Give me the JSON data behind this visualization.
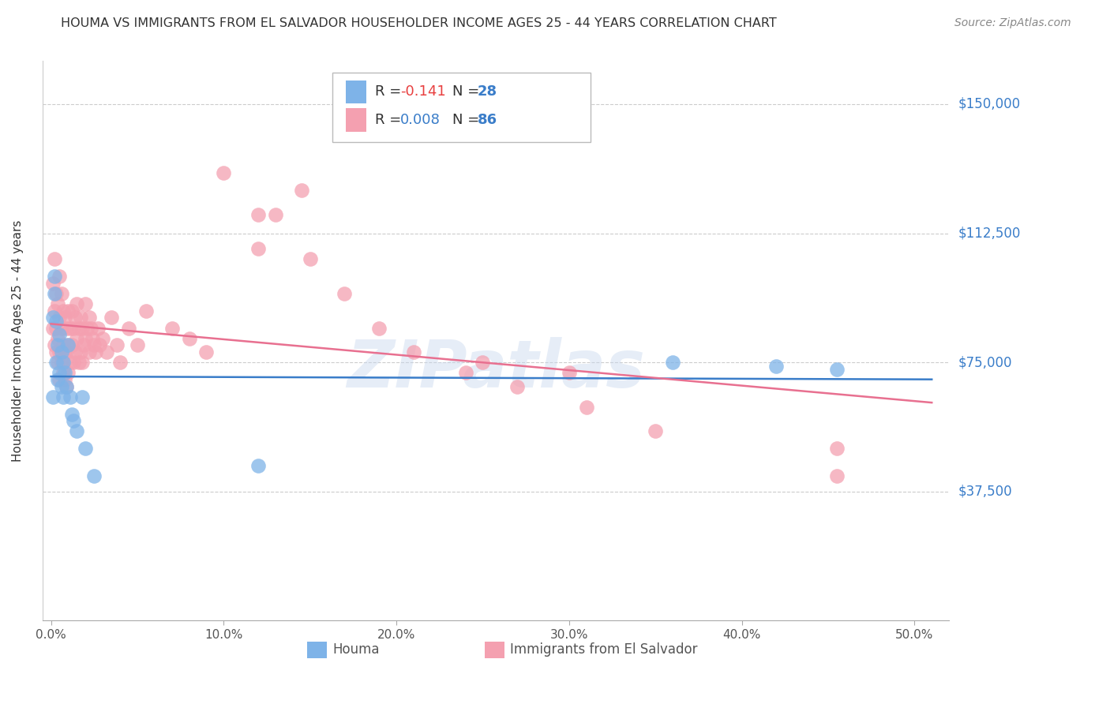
{
  "title": "HOUMA VS IMMIGRANTS FROM EL SALVADOR HOUSEHOLDER INCOME AGES 25 - 44 YEARS CORRELATION CHART",
  "source": "Source: ZipAtlas.com",
  "ylabel": "Householder Income Ages 25 - 44 years",
  "xlabel_ticks": [
    "0.0%",
    "10.0%",
    "20.0%",
    "30.0%",
    "40.0%",
    "50.0%"
  ],
  "xlabel_vals": [
    0.0,
    0.1,
    0.2,
    0.3,
    0.4,
    0.5
  ],
  "ytick_labels": [
    "$37,500",
    "$75,000",
    "$112,500",
    "$150,000"
  ],
  "ytick_vals": [
    37500,
    75000,
    112500,
    150000
  ],
  "ylim": [
    0,
    162500
  ],
  "xlim": [
    -0.005,
    0.52
  ],
  "houma_color": "#7EB3E8",
  "salvador_color": "#F4A0B0",
  "houma_line_color": "#3A7DC9",
  "salvador_line_color": "#E87090",
  "watermark": "ZIPatlas",
  "legend_R_houma_prefix": "R = ",
  "legend_R_houma_val": "-0.141",
  "legend_N_houma_prefix": "N = ",
  "legend_N_houma_val": "28",
  "legend_R_salvador_prefix": "R = ",
  "legend_R_salvador_val": "0.008",
  "legend_N_salvador_prefix": "N = ",
  "legend_N_salvador_val": "86",
  "houma_x": [
    0.001,
    0.001,
    0.002,
    0.002,
    0.003,
    0.003,
    0.004,
    0.004,
    0.005,
    0.005,
    0.006,
    0.006,
    0.007,
    0.007,
    0.008,
    0.009,
    0.01,
    0.011,
    0.012,
    0.013,
    0.015,
    0.018,
    0.02,
    0.025,
    0.12,
    0.36,
    0.42,
    0.455
  ],
  "houma_y": [
    88000,
    65000,
    95000,
    100000,
    87000,
    75000,
    80000,
    70000,
    83000,
    72000,
    78000,
    68000,
    75000,
    65000,
    72000,
    68000,
    80000,
    65000,
    60000,
    58000,
    55000,
    65000,
    50000,
    42000,
    45000,
    75000,
    74000,
    73000
  ],
  "salvador_x": [
    0.001,
    0.001,
    0.002,
    0.002,
    0.002,
    0.003,
    0.003,
    0.003,
    0.004,
    0.004,
    0.004,
    0.005,
    0.005,
    0.005,
    0.005,
    0.006,
    0.006,
    0.006,
    0.007,
    0.007,
    0.007,
    0.008,
    0.008,
    0.008,
    0.009,
    0.009,
    0.009,
    0.01,
    0.01,
    0.01,
    0.011,
    0.011,
    0.012,
    0.012,
    0.013,
    0.013,
    0.014,
    0.014,
    0.015,
    0.015,
    0.016,
    0.016,
    0.017,
    0.017,
    0.018,
    0.018,
    0.019,
    0.02,
    0.02,
    0.021,
    0.022,
    0.022,
    0.023,
    0.024,
    0.025,
    0.026,
    0.027,
    0.028,
    0.03,
    0.032,
    0.035,
    0.038,
    0.04,
    0.045,
    0.05,
    0.055,
    0.07,
    0.08,
    0.09,
    0.1,
    0.12,
    0.13,
    0.15,
    0.17,
    0.19,
    0.21,
    0.24,
    0.27,
    0.31,
    0.35,
    0.12,
    0.145,
    0.25,
    0.3,
    0.455,
    0.455
  ],
  "salvador_y": [
    98000,
    85000,
    105000,
    90000,
    80000,
    95000,
    85000,
    78000,
    92000,
    82000,
    75000,
    88000,
    100000,
    78000,
    70000,
    95000,
    85000,
    75000,
    90000,
    80000,
    72000,
    88000,
    78000,
    70000,
    85000,
    78000,
    68000,
    90000,
    80000,
    72000,
    85000,
    75000,
    90000,
    80000,
    85000,
    75000,
    88000,
    78000,
    92000,
    82000,
    85000,
    75000,
    88000,
    78000,
    85000,
    75000,
    80000,
    92000,
    82000,
    85000,
    88000,
    78000,
    85000,
    82000,
    80000,
    78000,
    85000,
    80000,
    82000,
    78000,
    88000,
    80000,
    75000,
    85000,
    80000,
    90000,
    85000,
    82000,
    78000,
    130000,
    108000,
    118000,
    105000,
    95000,
    85000,
    78000,
    72000,
    68000,
    62000,
    55000,
    118000,
    125000,
    75000,
    72000,
    50000,
    42000
  ]
}
